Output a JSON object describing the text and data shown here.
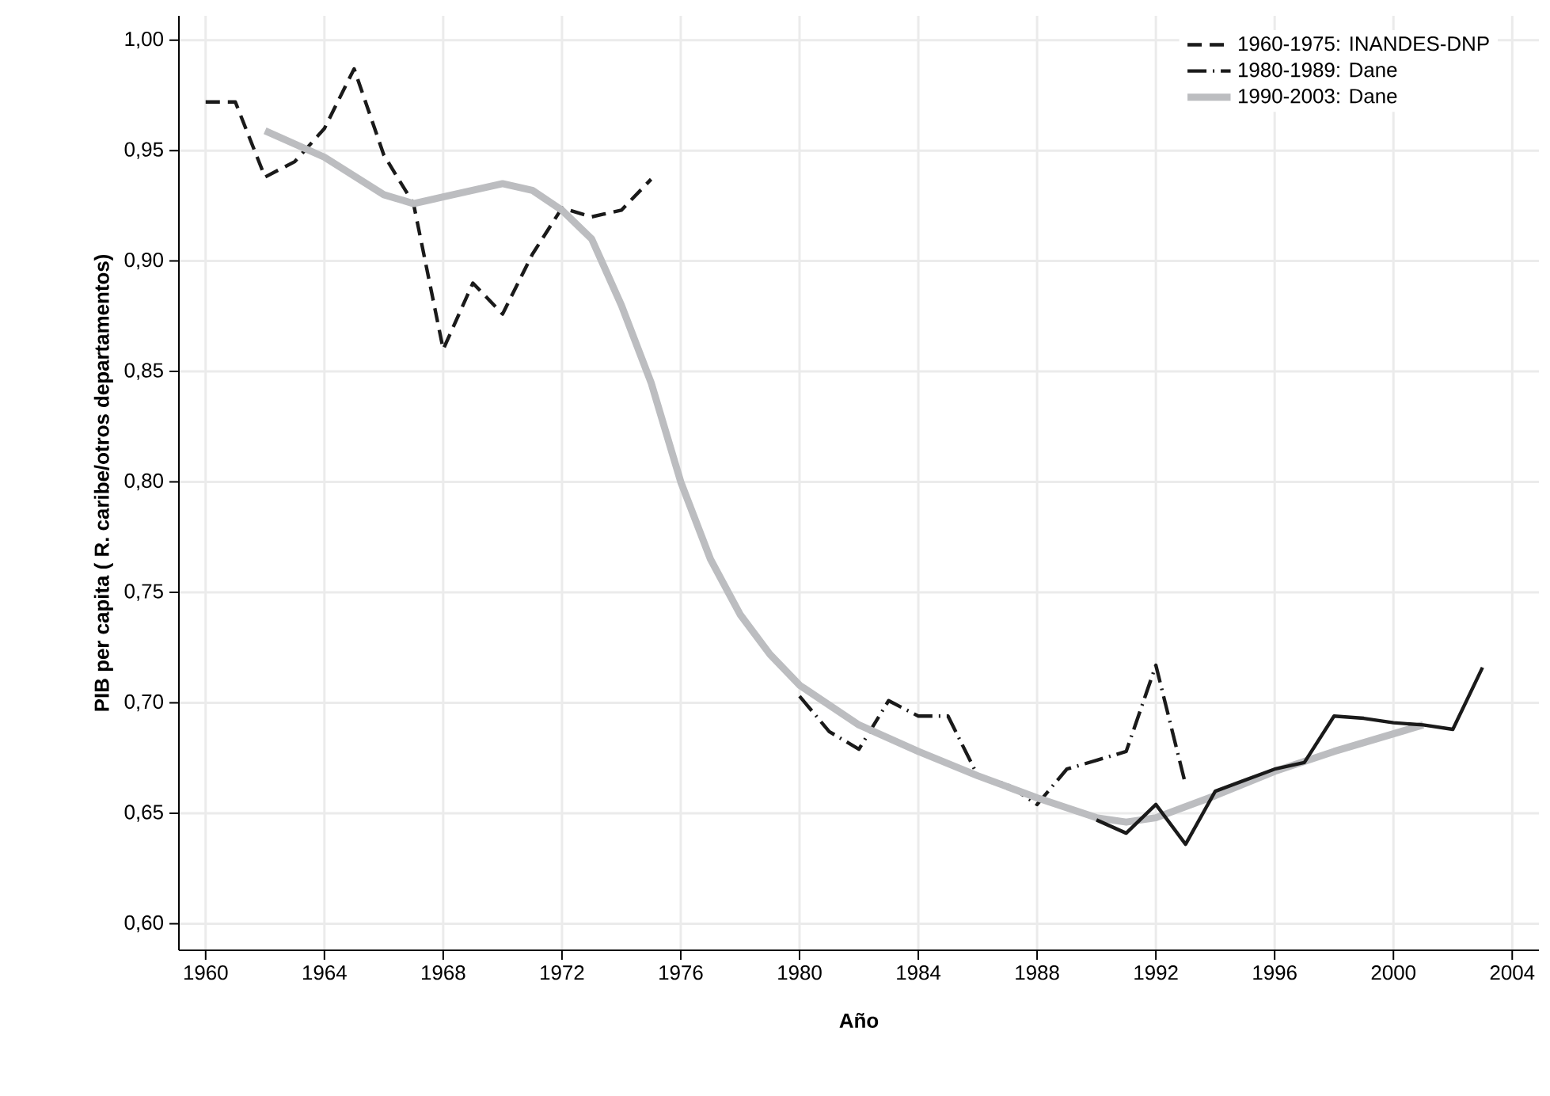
{
  "chart_data": {
    "type": "line",
    "xlabel": "Año",
    "ylabel": "PIB per capita ( R. caribe/otros departamentos)",
    "xlim": [
      1959.1,
      2004.9
    ],
    "ylim": [
      0.588,
      1.011
    ],
    "xticks": [
      1960,
      1964,
      1968,
      1972,
      1976,
      1980,
      1984,
      1988,
      1992,
      1996,
      2000,
      2004
    ],
    "yticks": [
      {
        "value": 0.6,
        "label": "0,60"
      },
      {
        "value": 0.65,
        "label": "0,65"
      },
      {
        "value": 0.7,
        "label": "0,70"
      },
      {
        "value": 0.75,
        "label": "0,75"
      },
      {
        "value": 0.8,
        "label": "0,80"
      },
      {
        "value": 0.85,
        "label": "0,85"
      },
      {
        "value": 0.9,
        "label": "0,90"
      },
      {
        "value": 0.95,
        "label": "0,95"
      },
      {
        "value": 1.0,
        "label": "1,00"
      }
    ],
    "grid": true,
    "legend": "top right",
    "marker": "none",
    "series": [
      {
        "name": "1960-1975: INANDES-DNP",
        "color": "#1a1a1a",
        "line_style": "dashed",
        "x": [
          1960,
          1961,
          1962,
          1963,
          1964,
          1965,
          1966,
          1967,
          1968,
          1969,
          1970,
          1971,
          1972,
          1973,
          1974,
          1975
        ],
        "values": [
          0.972,
          0.972,
          0.938,
          0.945,
          0.96,
          0.987,
          0.948,
          0.926,
          0.86,
          0.89,
          0.876,
          0.903,
          0.924,
          0.92,
          0.923,
          0.937
        ]
      },
      {
        "name": "1980-1989: Dane",
        "color": "#1a1a1a",
        "line_style": "dashdot",
        "x": [
          1980,
          1981,
          1982,
          1983,
          1984,
          1985,
          1986,
          1987,
          1988,
          1989,
          1990,
          1991,
          1992,
          1993
        ],
        "values": [
          0.703,
          0.687,
          0.679,
          0.701,
          0.694,
          0.694,
          0.667,
          0.663,
          0.654,
          0.67,
          0.674,
          0.678,
          0.717,
          0.663
        ]
      },
      {
        "name": "1990-2003: Dane",
        "color": "#bcbdc0",
        "line_style": "solid",
        "x": [
          1962,
          1964,
          1966,
          1967,
          1968,
          1970,
          1971,
          1972,
          1973,
          1974,
          1975,
          1976,
          1977,
          1978,
          1979,
          1980,
          1982,
          1984,
          1986,
          1988,
          1990,
          1991,
          1992,
          1994,
          1996,
          1998,
          2000,
          2001
        ],
        "values": [
          0.959,
          0.947,
          0.93,
          0.926,
          0.929,
          0.935,
          0.932,
          0.923,
          0.91,
          0.88,
          0.845,
          0.8,
          0.765,
          0.74,
          0.722,
          0.708,
          0.69,
          0.678,
          0.667,
          0.657,
          0.648,
          0.646,
          0.648,
          0.658,
          0.669,
          0.678,
          0.686,
          0.69
        ]
      },
      {
        "color": "#1a1a1a",
        "line_style": "solid",
        "x": [
          1990,
          1991,
          1992,
          1993,
          1994,
          1995,
          1996,
          1997,
          1998,
          1999,
          2000,
          2001,
          2002,
          2003
        ],
        "values": [
          0.647,
          0.641,
          0.654,
          0.636,
          0.66,
          0.665,
          0.67,
          0.673,
          0.694,
          0.693,
          0.691,
          0.69,
          0.688,
          0.716
        ]
      }
    ]
  }
}
